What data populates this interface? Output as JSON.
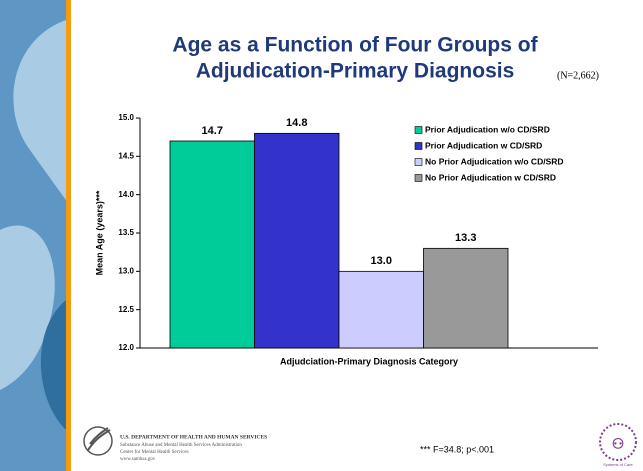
{
  "chart_data": {
    "type": "bar",
    "title": [
      "Age as a Function of Four Groups of",
      "Adjudication-Primary Diagnosis"
    ],
    "subtitle": "(N=2,662)",
    "categories": [
      "Adjudciation-Primary Diagnosis Category"
    ],
    "ylabel": "Mean Age (years)***",
    "series": [
      {
        "name": "Prior Adjudication w/o CD/SRD",
        "color": "#00cc99",
        "values": [
          14.7
        ]
      },
      {
        "name": "Prior Adjudication w CD/SRD",
        "color": "#3333cc",
        "values": [
          14.8
        ]
      },
      {
        "name": "No Prior Adjudication w/o CD/SRD",
        "color": "#ccccff",
        "values": [
          13
        ],
        "value_labels": [
          "13.0"
        ]
      },
      {
        "name": "No Prior Adjudication w CD/SRD",
        "color": "#999999",
        "values": [
          13.3
        ]
      }
    ],
    "ylim": [
      12,
      15
    ],
    "yticks": [
      {
        "value": 12,
        "label": "12.0"
      },
      12.5,
      {
        "value": 13,
        "label": "13.0"
      },
      13.5,
      {
        "value": 14,
        "label": "14.0"
      },
      14.5,
      {
        "value": 15,
        "label": "15.0"
      }
    ],
    "legend": "upper right",
    "annotation": "*** F=34.8; p<.001"
  },
  "footer": {
    "agency": "U.S. DEPARTMENT OF HEALTH AND HUMAN SERVICES",
    "lines": [
      "Substance Abuse and Mental Health Services Administration",
      "Center for Mental Health Services",
      "www.samhsa.gov"
    ],
    "logo": "Systems of Care"
  }
}
